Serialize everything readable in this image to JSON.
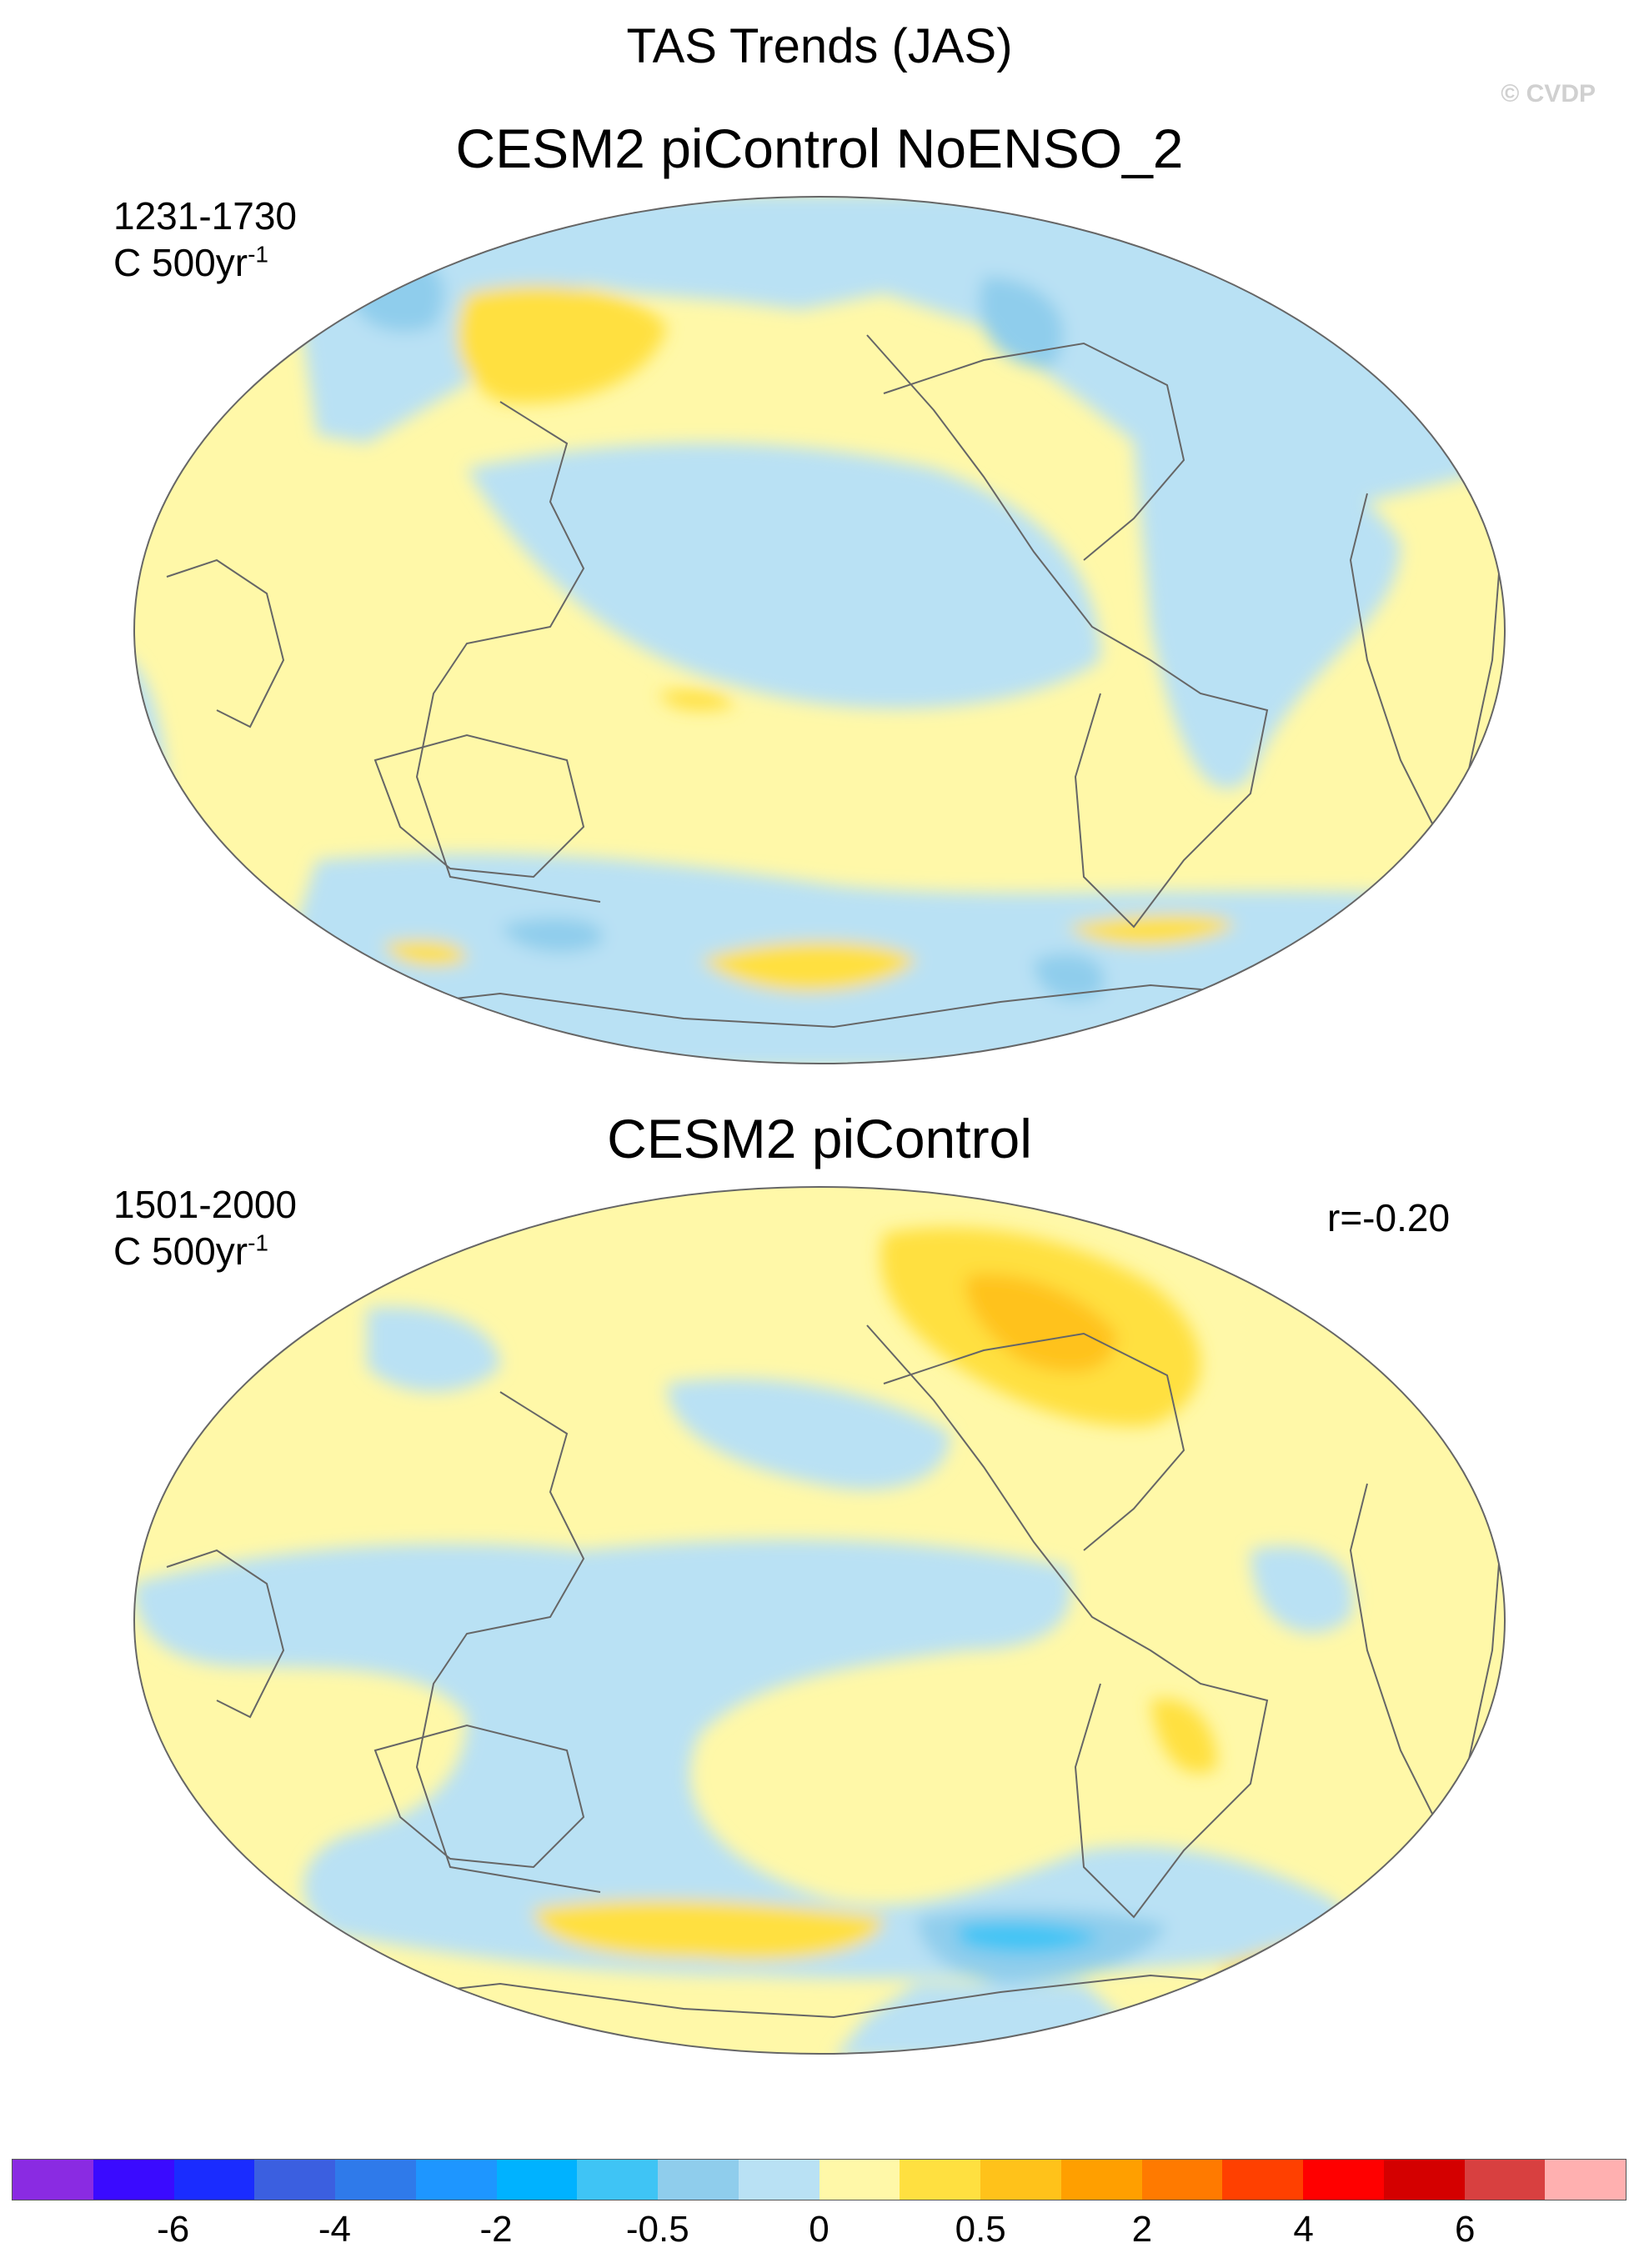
{
  "title": "TAS Trends (JAS)",
  "copyright": "© CVDP",
  "panels": [
    {
      "title": "CESM2 piControl NoENSO_2",
      "period": "1231-1730",
      "units_base": "C 500yr",
      "units_exp": "-1",
      "stat": ""
    },
    {
      "title": "CESM2 piControl",
      "period": "1501-2000",
      "units_base": "C 500yr",
      "units_exp": "-1",
      "stat": "r=-0.20"
    }
  ],
  "colorbar": {
    "colors": [
      "#8a2be2",
      "#3a0aff",
      "#1a2cff",
      "#3b5fe0",
      "#2f7aea",
      "#1e96ff",
      "#00b2ff",
      "#3fc4f5",
      "#8fcdec",
      "#b9e1f4",
      "#fff8a8",
      "#ffe040",
      "#ffc21a",
      "#ff9f00",
      "#ff7a00",
      "#ff4000",
      "#ff0000",
      "#d40000",
      "#d84040",
      "#ffb0b0"
    ],
    "tick_labels": [
      "-6",
      "-4",
      "-2",
      "-0.5",
      "0",
      "0.5",
      "2",
      "4",
      "6"
    ],
    "tick_boundary_index": [
      2,
      4,
      6,
      8,
      10,
      12,
      14,
      16,
      18
    ]
  }
}
